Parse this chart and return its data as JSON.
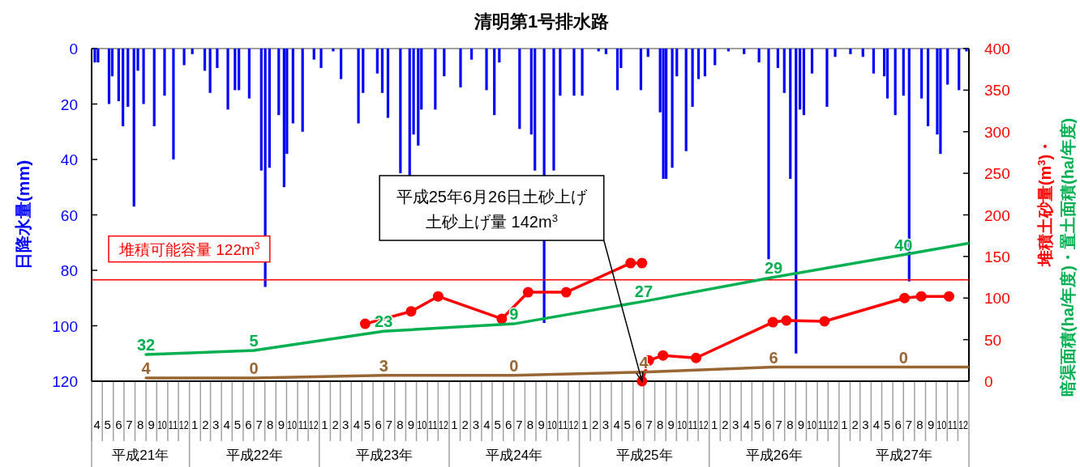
{
  "chart_data": {
    "type": "line",
    "title": "清明第1号排水路",
    "ylabel": "日降水量(mm)",
    "y2label": "堆積土砂量(m$^{3}$)・暗渠面積(ha/年度)・置土面積(ha/年度)",
    "xlim": [
      "2009-04-01",
      "2016-01-01"
    ],
    "xticks": [
      {
        "value": "2009-04-16",
        "label": "4"
      },
      {
        "value": "2009-05-16",
        "label": "5"
      },
      {
        "value": "2009-06-16",
        "label": "6"
      },
      {
        "value": "2009-07-16",
        "label": "7"
      },
      {
        "value": "2009-08-16",
        "label": "8"
      },
      {
        "value": "2009-09-16",
        "label": "9"
      },
      {
        "value": "2009-10-16",
        "label": "10"
      },
      {
        "value": "2009-11-16",
        "label": "11"
      },
      {
        "value": "2009-12-16",
        "label": "12"
      },
      {
        "value": "2010-01-16",
        "label": "1"
      },
      {
        "value": "2010-02-15",
        "label": "2"
      },
      {
        "value": "2010-03-16",
        "label": "3"
      },
      {
        "value": "2010-04-16",
        "label": "4"
      },
      {
        "value": "2010-05-16",
        "label": "5"
      },
      {
        "value": "2010-06-16",
        "label": "6"
      },
      {
        "value": "2010-07-16",
        "label": "7"
      },
      {
        "value": "2010-08-16",
        "label": "8"
      },
      {
        "value": "2010-09-16",
        "label": "9"
      },
      {
        "value": "2010-10-16",
        "label": "10"
      },
      {
        "value": "2010-11-16",
        "label": "11"
      },
      {
        "value": "2010-12-16",
        "label": "12"
      },
      {
        "value": "2011-01-16",
        "label": "1"
      },
      {
        "value": "2011-02-15",
        "label": "2"
      },
      {
        "value": "2011-03-16",
        "label": "3"
      },
      {
        "value": "2011-04-16",
        "label": "4"
      },
      {
        "value": "2011-05-16",
        "label": "5"
      },
      {
        "value": "2011-06-16",
        "label": "6"
      },
      {
        "value": "2011-07-16",
        "label": "7"
      },
      {
        "value": "2011-08-16",
        "label": "8"
      },
      {
        "value": "2011-09-16",
        "label": "9"
      },
      {
        "value": "2011-10-16",
        "label": "10"
      },
      {
        "value": "2011-11-16",
        "label": "11"
      },
      {
        "value": "2011-12-16",
        "label": "12"
      },
      {
        "value": "2012-01-16",
        "label": "1"
      },
      {
        "value": "2012-02-15",
        "label": "2"
      },
      {
        "value": "2012-03-16",
        "label": "3"
      },
      {
        "value": "2012-04-16",
        "label": "4"
      },
      {
        "value": "2012-05-16",
        "label": "5"
      },
      {
        "value": "2012-06-16",
        "label": "6"
      },
      {
        "value": "2012-07-16",
        "label": "7"
      },
      {
        "value": "2012-08-16",
        "label": "8"
      },
      {
        "value": "2012-09-16",
        "label": "9"
      },
      {
        "value": "2012-10-16",
        "label": "10"
      },
      {
        "value": "2012-11-16",
        "label": "11"
      },
      {
        "value": "2012-12-16",
        "label": "12"
      },
      {
        "value": "2013-01-16",
        "label": "1"
      },
      {
        "value": "2013-02-15",
        "label": "2"
      },
      {
        "value": "2013-03-16",
        "label": "3"
      },
      {
        "value": "2013-04-16",
        "label": "4"
      },
      {
        "value": "2013-05-16",
        "label": "5"
      },
      {
        "value": "2013-06-16",
        "label": "6"
      },
      {
        "value": "2013-07-16",
        "label": "7"
      },
      {
        "value": "2013-08-16",
        "label": "8"
      },
      {
        "value": "2013-09-16",
        "label": "9"
      },
      {
        "value": "2013-10-16",
        "label": "10"
      },
      {
        "value": "2013-11-16",
        "label": "11"
      },
      {
        "value": "2013-12-16",
        "label": "12"
      },
      {
        "value": "2014-01-16",
        "label": "1"
      },
      {
        "value": "2014-02-15",
        "label": "2"
      },
      {
        "value": "2014-03-16",
        "label": "3"
      },
      {
        "value": "2014-04-16",
        "label": "4"
      },
      {
        "value": "2014-05-16",
        "label": "5"
      },
      {
        "value": "2014-06-16",
        "label": "6"
      },
      {
        "value": "2014-07-16",
        "label": "7"
      },
      {
        "value": "2014-08-16",
        "label": "8"
      },
      {
        "value": "2014-09-16",
        "label": "9"
      },
      {
        "value": "2014-10-16",
        "label": "10"
      },
      {
        "value": "2014-11-16",
        "label": "11"
      },
      {
        "value": "2014-12-16",
        "label": "12"
      },
      {
        "value": "2015-01-16",
        "label": "1"
      },
      {
        "value": "2015-02-15",
        "label": "2"
      },
      {
        "value": "2015-03-16",
        "label": "3"
      },
      {
        "value": "2015-04-16",
        "label": "4"
      },
      {
        "value": "2015-05-16",
        "label": "5"
      },
      {
        "value": "2015-06-16",
        "label": "6"
      },
      {
        "value": "2015-07-16",
        "label": "7"
      },
      {
        "value": "2015-08-16",
        "label": "8"
      },
      {
        "value": "2015-09-16",
        "label": "9"
      },
      {
        "value": "2015-10-16",
        "label": "10"
      },
      {
        "value": "2015-11-16",
        "label": "11"
      },
      {
        "value": "2015-12-16",
        "label": "12"
      }
    ],
    "ylim": [
      120,
      0
    ],
    "yticks": [
      0,
      20,
      40,
      60,
      80,
      100,
      120
    ],
    "y2lim": [
      0,
      400
    ],
    "y2ticks": [
      0,
      50,
      100,
      150,
      200,
      250,
      300,
      350,
      400
    ],
    "series": [
      {
        "type": "bar",
        "color": "#0000ff",
        "x": [
          "2009-04-10",
          "2009-04-19",
          "2009-05-20",
          "2009-05-29",
          "2009-06-16",
          "2009-06-28",
          "2009-07-12",
          "2009-07-29",
          "2009-08-09",
          "2009-08-25",
          "2009-09-24",
          "2009-10-23",
          "2009-11-17",
          "2009-12-17",
          "2010-01-09",
          "2010-02-13",
          "2010-02-28",
          "2010-03-20",
          "2010-04-19",
          "2010-05-09",
          "2010-05-20",
          "2010-06-18",
          "2010-07-22",
          "2010-08-02",
          "2010-08-14",
          "2010-09-09",
          "2010-09-24",
          "2010-10-02",
          "2010-10-19",
          "2010-11-15",
          "2010-12-17",
          "2011-01-06",
          "2011-02-09",
          "2011-03-03",
          "2011-04-21",
          "2011-05-04",
          "2011-06-13",
          "2011-06-27",
          "2011-07-13",
          "2011-08-17",
          "2011-09-12",
          "2011-09-23",
          "2011-10-06",
          "2011-10-15",
          "2011-11-23",
          "2011-12-18",
          "2012-02-02",
          "2012-03-04",
          "2012-04-15",
          "2012-05-07",
          "2012-05-21",
          "2012-07-17",
          "2012-08-19",
          "2012-08-29",
          "2012-09-24",
          "2012-10-21",
          "2012-11-08",
          "2012-12-17",
          "2013-01-09",
          "2013-02-24",
          "2013-03-17",
          "2013-04-18",
          "2013-04-28",
          "2013-06-23",
          "2013-07-13",
          "2013-08-16",
          "2013-08-25",
          "2013-09-02",
          "2013-09-19",
          "2013-10-02",
          "2013-10-28",
          "2013-11-15",
          "2013-12-02",
          "2013-12-20",
          "2014-01-17",
          "2014-02-24",
          "2014-04-09",
          "2014-05-21",
          "2014-06-17",
          "2014-07-13",
          "2014-07-31",
          "2014-08-17",
          "2014-09-02",
          "2014-09-13",
          "2014-09-24",
          "2014-10-17",
          "2014-11-28",
          "2014-12-21",
          "2015-02-02",
          "2015-03-09",
          "2015-04-08",
          "2015-05-08",
          "2015-05-17",
          "2015-06-08",
          "2015-07-01",
          "2015-07-17",
          "2015-08-21",
          "2015-09-08",
          "2015-10-04",
          "2015-10-13",
          "2015-11-02",
          "2015-12-04",
          "2015-12-25"
        ],
        "values": [
          5,
          5,
          20,
          10,
          19,
          28,
          21,
          57,
          8,
          20,
          28,
          17,
          40,
          6,
          2,
          8,
          16,
          7,
          22,
          15,
          15,
          18,
          44,
          86,
          43,
          24,
          50,
          38,
          27,
          30,
          4,
          7,
          1,
          11,
          27,
          16,
          9,
          16,
          25,
          45,
          46,
          31,
          35,
          22,
          22,
          10,
          14,
          4,
          15,
          24,
          5,
          29,
          31,
          44,
          99,
          44,
          17,
          17,
          17,
          1,
          2,
          15,
          7,
          15,
          3,
          23,
          47,
          47,
          43,
          10,
          37,
          21,
          11,
          10,
          6,
          1,
          2,
          5,
          76,
          7,
          16,
          47,
          110,
          22,
          24,
          9,
          21,
          3,
          2,
          3,
          9,
          10,
          18,
          24,
          17,
          84,
          18,
          28,
          31,
          38,
          13,
          15,
          1
        ]
      },
      {
        "axis": "y2",
        "color": "#ff0000",
        "marker": "circle",
        "x": [
          "2011-05-10",
          "2011-09-16",
          "2011-12-01",
          "2012-05-28",
          "2012-08-10",
          "2012-11-25",
          "2013-05-25",
          "2013-06-26",
          null,
          "2013-06-26",
          "2013-07-15",
          "2013-08-24",
          "2013-11-25",
          "2014-06-29",
          "2014-08-06",
          "2014-11-21",
          "2015-07-04",
          "2015-08-20",
          "2015-11-06"
        ],
        "values": [
          69,
          84,
          102,
          75,
          107,
          107,
          142,
          142,
          null,
          0,
          25,
          31,
          28,
          71,
          73,
          72,
          100,
          102,
          102
        ]
      },
      {
        "axis": "y2",
        "color": "#00b050",
        "x": [
          "2009-09-01",
          "2010-07-01",
          "2011-07-01",
          "2012-07-01",
          "2013-07-01",
          "2014-07-01",
          "2015-07-01",
          "2016-01-01"
        ],
        "values": [
          32,
          37,
          60,
          69,
          96,
          125,
          152,
          166
        ]
      },
      {
        "axis": "y2",
        "color": "#996633",
        "x": [
          "2009-09-01",
          "2010-07-01",
          "2011-07-01",
          "2012-07-01",
          "2013-07-01",
          "2014-07-01",
          "2015-07-01",
          "2016-01-01"
        ],
        "values": [
          4,
          4,
          7,
          7,
          11,
          17,
          17,
          17
        ]
      }
    ],
    "ref_lines": [
      {
        "axis": "y2",
        "value": 122,
        "label": "堆積可能容量 122m$^{3}$",
        "color": "#ff0000"
      }
    ],
    "annotations": [
      "平成21年",
      "平成22年",
      "平成23年",
      "平成24年",
      "平成25年",
      "平成26年",
      "平成27年",
      {
        "text": "平成25年6月26日土砂上げ土砂上げ量 142m$^{3}$",
        "x": "2013-06-26",
        "y": 120
      },
      "32",
      "5",
      "23",
      "9",
      "27",
      "29",
      "40",
      "4",
      "0",
      "3",
      "0",
      "4",
      "6",
      "0"
    ]
  }
}
